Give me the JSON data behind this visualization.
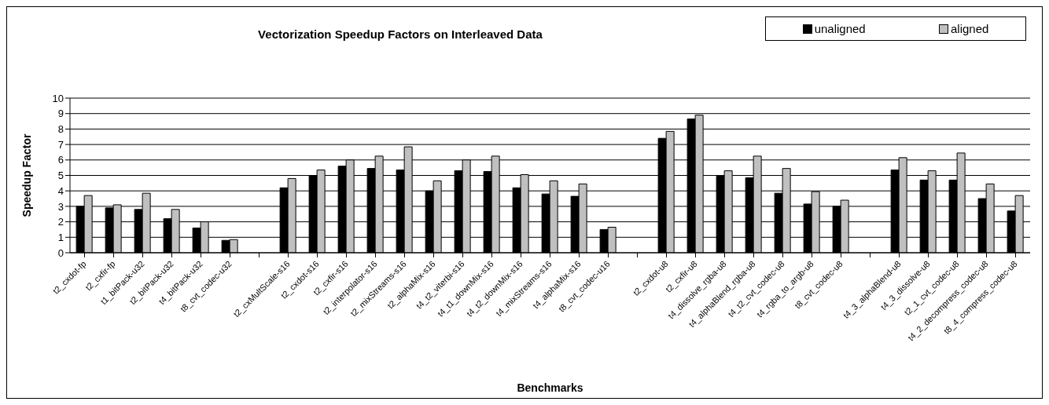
{
  "chart_data": {
    "type": "bar",
    "title": "Vectorization Speedup Factors on Interleaved Data",
    "xlabel": "Benchmarks",
    "ylabel": "Speedup Factor",
    "categories": [
      "t2_cxdot-fp",
      "t2_cxfir-fp",
      "t1_bitPack-u32",
      "t2_bitPack-u32",
      "t4_bitPack-u32",
      "t8_cvt_codec-u32",
      null,
      "t2_cxMultScale-s16",
      "t2_cxdot-s16",
      "t2_cxfir-s16",
      "t2_interpolator-s16",
      "t2_mixStreams-s16",
      "t2_alphaMix-s16",
      "t4_t2_viterbi-s16",
      "t4_t1_downMix-s16",
      "t4_t2_downMix-s16",
      "t4_mixStreams-s16",
      "t4_alphaMix-s16",
      "t8_cvt_codec-u16",
      null,
      "t2_cxdot-u8",
      "t2_cxfir-u8",
      "t4_dissolve_rgba-u8",
      "t4_alphaBlend_rgba-u8",
      "t4_t2_cvt_codec-u8",
      "t4_rgba_to_argb-u8",
      "t8_cvt_codec-u8",
      null,
      "t4_3_alphaBlend-u8",
      "t4_3_dissolve-u8",
      "t2_1_cvt_codec-u8",
      "t4_2_decompress_codec-u8",
      "t8_4_compress_codec-u8"
    ],
    "series": [
      {
        "name": "unaligned",
        "color": "#000000",
        "values": [
          3.0,
          2.9,
          2.8,
          2.2,
          1.6,
          0.8,
          null,
          4.2,
          5.0,
          5.6,
          5.45,
          5.35,
          4.0,
          5.3,
          5.25,
          4.2,
          3.8,
          3.65,
          1.5,
          null,
          7.4,
          8.65,
          4.95,
          4.85,
          3.85,
          3.15,
          3.0,
          null,
          5.35,
          4.7,
          4.7,
          3.5,
          2.7
        ]
      },
      {
        "name": "aligned",
        "color": "#c0c0c0",
        "values": [
          3.7,
          3.1,
          3.85,
          2.8,
          2.0,
          0.85,
          null,
          4.8,
          5.35,
          6.0,
          6.25,
          6.85,
          4.65,
          6.0,
          6.25,
          5.05,
          4.65,
          4.45,
          1.65,
          null,
          7.85,
          8.9,
          5.3,
          6.25,
          5.45,
          3.95,
          3.4,
          null,
          6.15,
          5.3,
          6.45,
          4.45,
          3.7
        ]
      }
    ],
    "ylim": [
      0,
      10
    ],
    "yticks": [
      0,
      1,
      2,
      3,
      4,
      5,
      6,
      7,
      8,
      9,
      10
    ],
    "grid": "y",
    "legend": "top right"
  }
}
